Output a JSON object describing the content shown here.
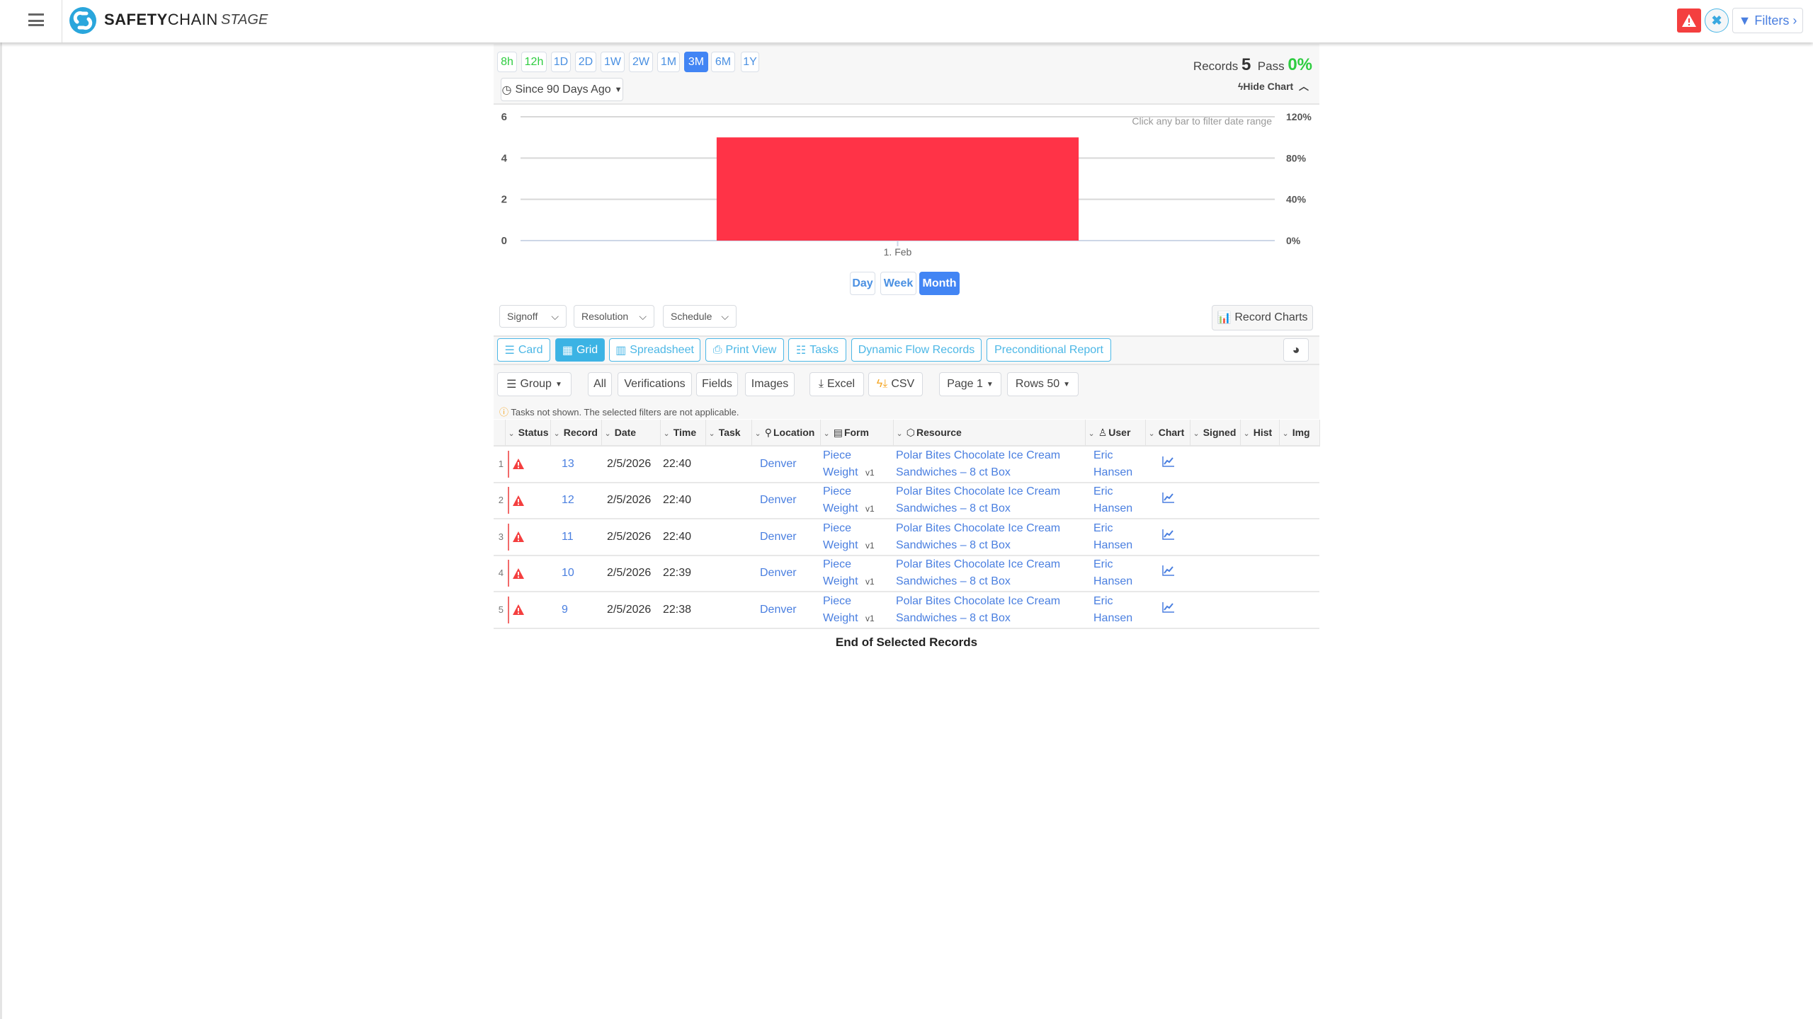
{
  "header": {
    "brand_bold": "SAFETY",
    "brand_rest": "CHAIN",
    "env": "STAGE",
    "filters_label": "Filters",
    "icons": {
      "menu": "hamburger-icon",
      "alert": "warning-triangle-icon",
      "clear": "close-icon",
      "filter": "funnel-icon"
    }
  },
  "range": {
    "buttons": [
      {
        "label": "8h",
        "color": "green"
      },
      {
        "label": "12h",
        "color": "green"
      },
      {
        "label": "1D"
      },
      {
        "label": "2D"
      },
      {
        "label": "1W"
      },
      {
        "label": "2W"
      },
      {
        "label": "1M"
      },
      {
        "label": "3M",
        "active": true
      },
      {
        "label": "6M"
      },
      {
        "label": "1Y"
      }
    ],
    "since_label": "Since 90 Days Ago"
  },
  "summary": {
    "records_label": "Records",
    "records_value": "5",
    "pass_label": "Pass",
    "pass_value": "0%",
    "hide_chart": "Hide Chart"
  },
  "chart_data": {
    "type": "bar",
    "categories": [
      "1. Feb"
    ],
    "values": [
      5
    ],
    "ylim": [
      0,
      6
    ],
    "yticks": [
      "0",
      "2",
      "4",
      "6"
    ],
    "y2ticks": [
      "0%",
      "40%",
      "80%",
      "120%"
    ],
    "bar_color": "#ff3347",
    "grid": true,
    "hint": "Click any bar to filter date range"
  },
  "granularity": {
    "buttons": [
      "Day",
      "Week",
      "Month"
    ],
    "active": "Month"
  },
  "dropdowns": [
    "Signoff",
    "Resolution",
    "Schedule"
  ],
  "record_charts": "Record Charts",
  "views": [
    {
      "label": "Card",
      "icon": "card-icon"
    },
    {
      "label": "Grid",
      "icon": "grid-icon",
      "active": true
    },
    {
      "label": "Spreadsheet",
      "icon": "spreadsheet-icon"
    },
    {
      "label": "Print View",
      "icon": "print-icon"
    },
    {
      "label": "Tasks",
      "icon": "tasks-icon"
    },
    {
      "label": "Dynamic Flow Records"
    },
    {
      "label": "Preconditional Report"
    }
  ],
  "actions": {
    "group": "Group",
    "all": "All",
    "verifications": "Verifications",
    "fields": "Fields",
    "images": "Images",
    "excel": "Excel",
    "csv": "CSV",
    "page": "Page 1",
    "rows": "Rows 50"
  },
  "notice": "Tasks not shown. The selected filters are not applicable.",
  "table": {
    "columns": [
      "Status",
      "Record",
      "Date",
      "Time",
      "Task",
      "Location",
      "Form",
      "Resource",
      "User",
      "Chart",
      "Signed",
      "Hist",
      "Img"
    ],
    "rows": [
      {
        "idx": "1",
        "record": "13",
        "date": "2/5/2026",
        "time": "22:40",
        "location": "Denver",
        "form": "Piece Weight",
        "form_ver": "v1",
        "resource": "Polar Bites Chocolate Ice Cream Sandwiches – 8 ct Box",
        "user": "Eric Hansen"
      },
      {
        "idx": "2",
        "record": "12",
        "date": "2/5/2026",
        "time": "22:40",
        "location": "Denver",
        "form": "Piece Weight",
        "form_ver": "v1",
        "resource": "Polar Bites Chocolate Ice Cream Sandwiches – 8 ct Box",
        "user": "Eric Hansen"
      },
      {
        "idx": "3",
        "record": "11",
        "date": "2/5/2026",
        "time": "22:40",
        "location": "Denver",
        "form": "Piece Weight",
        "form_ver": "v1",
        "resource": "Polar Bites Chocolate Ice Cream Sandwiches – 8 ct Box",
        "user": "Eric Hansen"
      },
      {
        "idx": "4",
        "record": "10",
        "date": "2/5/2026",
        "time": "22:39",
        "location": "Denver",
        "form": "Piece Weight",
        "form_ver": "v1",
        "resource": "Polar Bites Chocolate Ice Cream Sandwiches – 8 ct Box",
        "user": "Eric Hansen"
      },
      {
        "idx": "5",
        "record": "9",
        "date": "2/5/2026",
        "time": "22:38",
        "location": "Denver",
        "form": "Piece Weight",
        "form_ver": "v1",
        "resource": "Polar Bites Chocolate Ice Cream Sandwiches – 8 ct Box",
        "user": "Eric Hansen"
      }
    ]
  },
  "footer": "End of Selected Records"
}
